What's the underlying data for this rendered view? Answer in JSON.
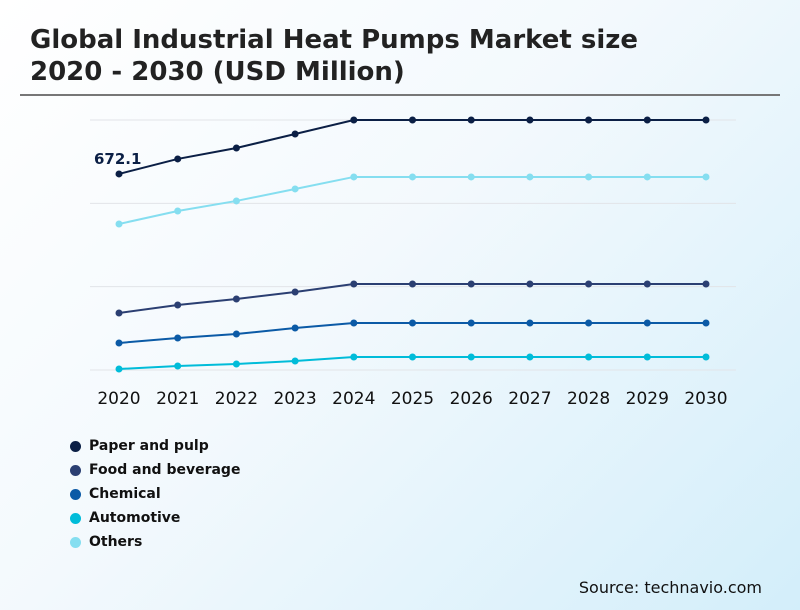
{
  "title_line1": "Global Industrial Heat Pumps Market size",
  "title_line2": "2020 - 2030 (USD Million)",
  "source": "Source: technavio.com",
  "chart_data": {
    "type": "line",
    "title": "Global Industrial Heat Pumps Market size 2020 - 2030 (USD Million)",
    "x": [
      "2020",
      "2021",
      "2022",
      "2023",
      "2024",
      "2025",
      "2026",
      "2027",
      "2028",
      "2029",
      "2030"
    ],
    "ylim": [
      0,
      857
    ],
    "grid": true,
    "legend": "bottom-left",
    "annotations": [
      {
        "series": "Paper and pulp",
        "x": "2020",
        "text": "672.1"
      }
    ],
    "series": [
      {
        "name": "Paper and pulp",
        "color": "#0b1f45",
        "values": [
          672.1,
          723.5,
          761,
          809,
          857,
          857,
          857,
          857,
          857,
          857,
          857
        ]
      },
      {
        "name": "Food and beverage",
        "color": "#2b3f72",
        "values": [
          195.4,
          222.9,
          243.5,
          267.5,
          294.9,
          294.9,
          294.9,
          294.9,
          294.9,
          294.9,
          294.9
        ]
      },
      {
        "name": "Chemical",
        "color": "#0b5aa6",
        "values": [
          92.6,
          109.7,
          123.4,
          144,
          161.2,
          161.2,
          161.2,
          161.2,
          161.2,
          161.2,
          161.2
        ]
      },
      {
        "name": "Automotive",
        "color": "#00bcd9",
        "values": [
          3.4,
          13.7,
          20.6,
          30.9,
          44.6,
          44.6,
          44.6,
          44.6,
          44.6,
          44.6,
          44.6
        ]
      },
      {
        "name": "Others",
        "color": "#85def0",
        "values": [
          500.6,
          545,
          579.5,
          620.6,
          661.8,
          661.8,
          661.8,
          661.8,
          661.8,
          661.8,
          661.8
        ]
      }
    ]
  }
}
